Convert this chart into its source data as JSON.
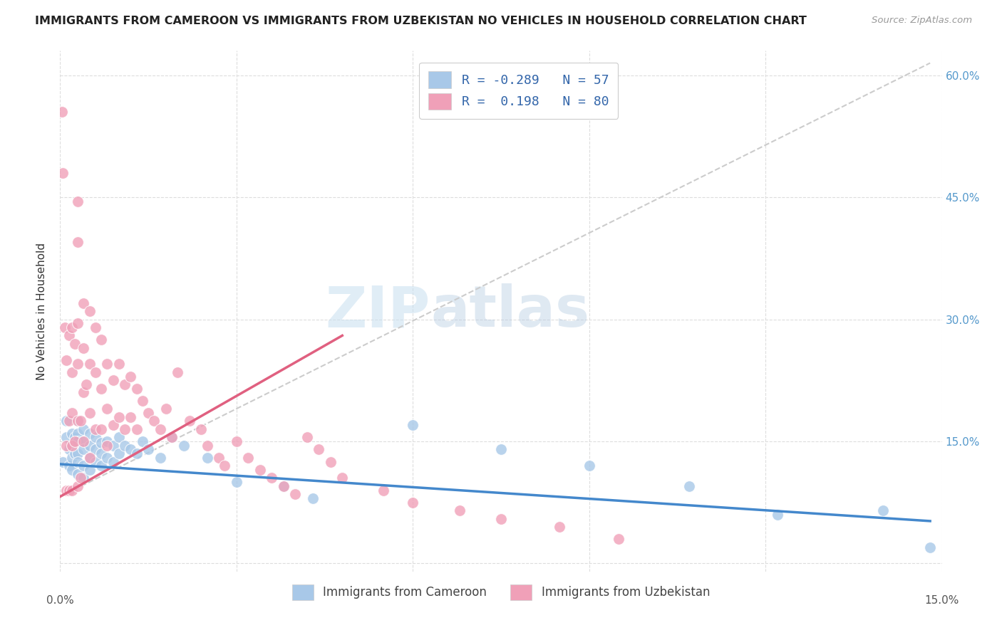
{
  "title": "IMMIGRANTS FROM CAMEROON VS IMMIGRANTS FROM UZBEKISTAN NO VEHICLES IN HOUSEHOLD CORRELATION CHART",
  "source": "Source: ZipAtlas.com",
  "ylabel": "No Vehicles in Household",
  "xlim": [
    0.0,
    0.15
  ],
  "ylim": [
    -0.01,
    0.63
  ],
  "color_cameroon": "#a8c8e8",
  "color_uzbekistan": "#f0a0b8",
  "line_color_cameroon": "#4488cc",
  "line_color_uzbekistan": "#e06080",
  "dash_line_color": "#cccccc",
  "watermark_zip": "ZIP",
  "watermark_atlas": "atlas",
  "legend_r1": "R = -0.289",
  "legend_n1": "N = 57",
  "legend_r2": "R =  0.198",
  "legend_n2": "N = 80",
  "cam_x": [
    0.0005,
    0.001,
    0.001,
    0.0015,
    0.0015,
    0.002,
    0.002,
    0.002,
    0.002,
    0.0025,
    0.0025,
    0.003,
    0.003,
    0.003,
    0.003,
    0.003,
    0.003,
    0.004,
    0.004,
    0.004,
    0.004,
    0.004,
    0.005,
    0.005,
    0.005,
    0.005,
    0.006,
    0.006,
    0.006,
    0.007,
    0.007,
    0.007,
    0.008,
    0.008,
    0.009,
    0.009,
    0.01,
    0.01,
    0.011,
    0.012,
    0.013,
    0.014,
    0.015,
    0.017,
    0.019,
    0.021,
    0.025,
    0.03,
    0.038,
    0.043,
    0.06,
    0.075,
    0.09,
    0.107,
    0.122,
    0.14,
    0.148
  ],
  "cam_y": [
    0.125,
    0.175,
    0.155,
    0.14,
    0.12,
    0.16,
    0.145,
    0.13,
    0.115,
    0.155,
    0.135,
    0.175,
    0.16,
    0.15,
    0.135,
    0.125,
    0.11,
    0.165,
    0.15,
    0.14,
    0.12,
    0.105,
    0.16,
    0.145,
    0.13,
    0.115,
    0.155,
    0.14,
    0.125,
    0.148,
    0.135,
    0.12,
    0.15,
    0.13,
    0.145,
    0.125,
    0.155,
    0.135,
    0.145,
    0.14,
    0.135,
    0.15,
    0.14,
    0.13,
    0.155,
    0.145,
    0.13,
    0.1,
    0.095,
    0.08,
    0.17,
    0.14,
    0.12,
    0.095,
    0.06,
    0.065,
    0.02
  ],
  "uzb_x": [
    0.0003,
    0.0005,
    0.0008,
    0.001,
    0.001,
    0.001,
    0.0015,
    0.0015,
    0.0015,
    0.002,
    0.002,
    0.002,
    0.002,
    0.002,
    0.0025,
    0.0025,
    0.003,
    0.003,
    0.003,
    0.003,
    0.003,
    0.003,
    0.0035,
    0.0035,
    0.004,
    0.004,
    0.004,
    0.004,
    0.0045,
    0.005,
    0.005,
    0.005,
    0.005,
    0.006,
    0.006,
    0.006,
    0.007,
    0.007,
    0.007,
    0.008,
    0.008,
    0.008,
    0.009,
    0.009,
    0.01,
    0.01,
    0.011,
    0.011,
    0.012,
    0.012,
    0.013,
    0.013,
    0.014,
    0.015,
    0.016,
    0.017,
    0.018,
    0.019,
    0.02,
    0.022,
    0.024,
    0.025,
    0.027,
    0.028,
    0.03,
    0.032,
    0.034,
    0.036,
    0.038,
    0.04,
    0.042,
    0.044,
    0.046,
    0.048,
    0.055,
    0.06,
    0.068,
    0.075,
    0.085,
    0.095
  ],
  "uzb_y": [
    0.555,
    0.48,
    0.29,
    0.25,
    0.145,
    0.09,
    0.28,
    0.175,
    0.09,
    0.29,
    0.235,
    0.185,
    0.145,
    0.09,
    0.27,
    0.15,
    0.445,
    0.395,
    0.295,
    0.245,
    0.175,
    0.095,
    0.175,
    0.105,
    0.32,
    0.265,
    0.21,
    0.15,
    0.22,
    0.31,
    0.245,
    0.185,
    0.13,
    0.29,
    0.235,
    0.165,
    0.275,
    0.215,
    0.165,
    0.245,
    0.19,
    0.145,
    0.225,
    0.17,
    0.245,
    0.18,
    0.22,
    0.165,
    0.23,
    0.18,
    0.215,
    0.165,
    0.2,
    0.185,
    0.175,
    0.165,
    0.19,
    0.155,
    0.235,
    0.175,
    0.165,
    0.145,
    0.13,
    0.12,
    0.15,
    0.13,
    0.115,
    0.105,
    0.095,
    0.085,
    0.155,
    0.14,
    0.125,
    0.105,
    0.09,
    0.075,
    0.065,
    0.055,
    0.045,
    0.03
  ],
  "cam_line_x": [
    0.0,
    0.148
  ],
  "cam_line_y": [
    0.122,
    0.052
  ],
  "uzb_line_x": [
    0.0,
    0.048
  ],
  "uzb_line_y": [
    0.082,
    0.28
  ],
  "dash_line_x": [
    0.0,
    0.148
  ],
  "dash_line_y": [
    0.082,
    0.615
  ]
}
